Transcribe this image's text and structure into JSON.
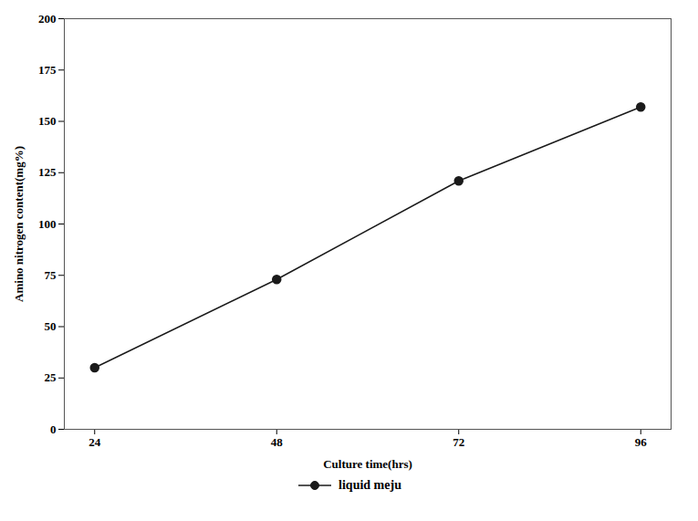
{
  "chart_data": {
    "type": "line",
    "x": [
      24,
      48,
      72,
      96
    ],
    "series": [
      {
        "name": "liquid meju",
        "color": "#1a1a1a",
        "marker": "circle",
        "values": [
          30,
          73,
          121,
          157
        ]
      }
    ],
    "xlabel": "Culture time(hrs)",
    "ylabel": "Amino nitrogen content(mg%)",
    "xlim": [
      20,
      100
    ],
    "ylim": [
      0,
      200
    ],
    "xticks": [
      24,
      48,
      72,
      96
    ],
    "yticks": [
      0,
      25,
      50,
      75,
      100,
      125,
      150,
      175,
      200
    ],
    "grid": false,
    "legend": "bottom"
  }
}
